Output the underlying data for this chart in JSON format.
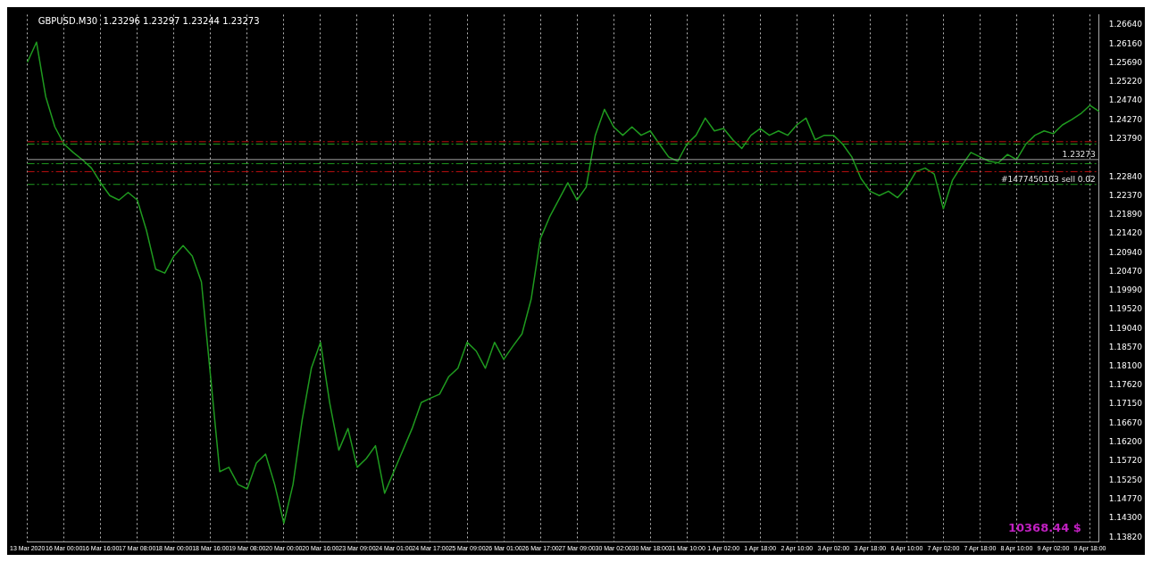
{
  "chart_data": {
    "type": "line",
    "title": "GBPUSD.M30  1.23296 1.23297 1.23244 1.23273",
    "categories": [
      "13 Mar 2020",
      null,
      null,
      null,
      "16 Mar 00:00",
      null,
      null,
      null,
      "16 Mar 16:00",
      null,
      null,
      null,
      "17 Mar 08:00",
      null,
      null,
      null,
      "18 Mar 00:00",
      null,
      null,
      null,
      "18 Mar 16:00",
      null,
      null,
      null,
      "19 Mar 08:00",
      null,
      null,
      null,
      "20 Mar 00:00",
      null,
      null,
      null,
      "20 Mar 16:00",
      null,
      null,
      null,
      "23 Mar 09:00",
      null,
      null,
      null,
      "24 Mar 01:00",
      null,
      null,
      null,
      "24 Mar 17:00",
      null,
      null,
      null,
      "25 Mar 09:00",
      null,
      null,
      null,
      "26 Mar 01:00",
      null,
      null,
      null,
      "26 Mar 17:00",
      null,
      null,
      null,
      "27 Mar 09:00",
      null,
      null,
      null,
      "30 Mar 02:00",
      null,
      null,
      null,
      "30 Mar 18:00",
      null,
      null,
      null,
      "31 Mar 10:00",
      null,
      null,
      null,
      "1 Apr 02:00",
      null,
      null,
      null,
      "1 Apr 18:00",
      null,
      null,
      null,
      "2 Apr 10:00",
      null,
      null,
      null,
      "3 Apr 02:00",
      null,
      null,
      null,
      "3 Apr 18:00",
      null,
      null,
      null,
      "6 Apr 10:00",
      null,
      null,
      null,
      "7 Apr 02:00",
      null,
      null,
      null,
      "7 Apr 18:00",
      null,
      null,
      null,
      "8 Apr 10:00",
      null,
      null,
      null,
      "9 Apr 02:00",
      null,
      null,
      null,
      "9 Apr 18:00",
      null
    ],
    "series": [
      {
        "color": "#1f9a1f",
        "values": [
          1.2571,
          1.2621,
          1.2485,
          1.2409,
          1.2366,
          1.2345,
          1.2327,
          1.2306,
          1.2269,
          1.2237,
          1.2226,
          1.2245,
          1.2226,
          1.215,
          1.2053,
          1.2043,
          1.2086,
          1.2112,
          1.2086,
          1.2021,
          1.1784,
          1.1546,
          1.1557,
          1.1514,
          1.1503,
          1.1568,
          1.159,
          1.1514,
          1.1417,
          1.1514,
          1.1676,
          1.1805,
          1.187,
          1.1719,
          1.16,
          1.1654,
          1.1557,
          1.1579,
          1.1611,
          1.1492,
          1.1546,
          1.16,
          1.1654,
          1.1719,
          1.173,
          1.174,
          1.1784,
          1.1805,
          1.187,
          1.1848,
          1.1805,
          1.187,
          1.1827,
          1.186,
          1.1891,
          1.1978,
          1.2129,
          1.2183,
          1.2226,
          1.2269,
          1.2226,
          1.2258,
          1.2388,
          1.2453,
          1.2409,
          1.2388,
          1.2409,
          1.2388,
          1.2399,
          1.2366,
          1.2334,
          1.2323,
          1.2366,
          1.2388,
          1.2431,
          1.2399,
          1.2405,
          1.2377,
          1.2355,
          1.2388,
          1.2405,
          1.2388,
          1.2399,
          1.2388,
          1.2414,
          1.2431,
          1.2377,
          1.2388,
          1.2388,
          1.2366,
          1.2334,
          1.228,
          1.2248,
          1.2237,
          1.2248,
          1.2232,
          1.2258,
          1.2297,
          1.2306,
          1.2291,
          1.2204,
          1.2276,
          1.2312,
          1.2345,
          1.2334,
          1.2323,
          1.2319,
          1.234,
          1.2327,
          1.2366,
          1.2388,
          1.2399,
          1.2392,
          1.2414,
          1.2427,
          1.2442,
          1.2463,
          1.2448
        ]
      }
    ],
    "ylim": [
      1.137,
      1.269
    ],
    "yticks": [
      {
        "value": 1.2664,
        "label": "1.26640"
      },
      {
        "value": 1.2616,
        "label": "1.26160"
      },
      {
        "value": 1.2569,
        "label": "1.25690"
      },
      {
        "value": 1.2522,
        "label": "1.25220"
      },
      {
        "value": 1.2474,
        "label": "1.24740"
      },
      {
        "value": 1.2427,
        "label": "1.24270"
      },
      {
        "value": 1.2379,
        "label": "1.23790"
      },
      {
        "value": 1.2284,
        "label": "1.22840"
      },
      {
        "value": 1.2237,
        "label": "1.22370"
      },
      {
        "value": 1.2189,
        "label": "1.21890"
      },
      {
        "value": 1.2142,
        "label": "1.21420"
      },
      {
        "value": 1.2094,
        "label": "1.20940"
      },
      {
        "value": 1.2047,
        "label": "1.20470"
      },
      {
        "value": 1.1999,
        "label": "1.19990"
      },
      {
        "value": 1.1952,
        "label": "1.19520"
      },
      {
        "value": 1.1904,
        "label": "1.19040"
      },
      {
        "value": 1.1857,
        "label": "1.18570"
      },
      {
        "value": 1.181,
        "label": "1.18100"
      },
      {
        "value": 1.1762,
        "label": "1.17620"
      },
      {
        "value": 1.1715,
        "label": "1.17150"
      },
      {
        "value": 1.1667,
        "label": "1.16670"
      },
      {
        "value": 1.162,
        "label": "1.16200"
      },
      {
        "value": 1.1572,
        "label": "1.15720"
      },
      {
        "value": 1.1525,
        "label": "1.15250"
      },
      {
        "value": 1.1477,
        "label": "1.14770"
      },
      {
        "value": 1.143,
        "label": "1.14300"
      },
      {
        "value": 1.1382,
        "label": "1.13820"
      }
    ],
    "ref_lines": [
      {
        "axis": "y",
        "value": 1.23273,
        "label": "1.23273",
        "color": "#a0a0a0",
        "line_style": "solid"
      },
      {
        "axis": "y",
        "value": 1.2372,
        "color": "#c01010",
        "line_style": "dashed"
      },
      {
        "axis": "y",
        "value": 1.2366,
        "color": "#1f9a1f",
        "line_style": "dashed"
      },
      {
        "axis": "y",
        "value": 1.2317,
        "color": "#1f9a1f",
        "line_style": "dashed"
      },
      {
        "axis": "y",
        "value": 1.2297,
        "color": "#c01010",
        "line_style": "dashed"
      },
      {
        "axis": "y",
        "value": 1.2265,
        "label": "#1477450103 sell 0.02",
        "color": "#1f9a1f",
        "line_style": "dashed"
      }
    ],
    "annotations": [
      "10368.44 $"
    ],
    "grid": "x",
    "legend": false,
    "marker": "none",
    "line_style": "solid"
  }
}
